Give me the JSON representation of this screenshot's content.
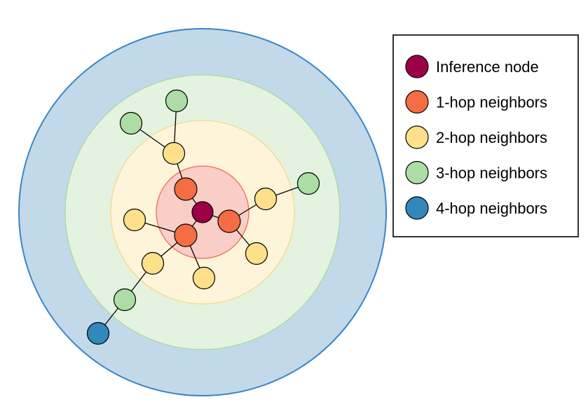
{
  "rings": [
    {
      "hop": 4,
      "fill": "#c2d9ea",
      "stroke": "#3a86c4"
    },
    {
      "hop": 3,
      "fill": "#e4f3df",
      "stroke": "#a9d9a0"
    },
    {
      "hop": 2,
      "fill": "#fdf4d9",
      "stroke": "#f3d88b"
    },
    {
      "hop": 1,
      "fill": "#f9cec6",
      "stroke": "#ee6d55"
    }
  ],
  "legend": {
    "items": [
      {
        "label": "Inference node",
        "color": "#9c0047"
      },
      {
        "label": "1-hop neighbors",
        "color": "#f46d43"
      },
      {
        "label": "2-hop neighbors",
        "color": "#fee08b"
      },
      {
        "label": "3-hop neighbors",
        "color": "#abdda4"
      },
      {
        "label": "4-hop neighbors",
        "color": "#3288bd"
      }
    ]
  },
  "nodes": [
    {
      "id": "center",
      "hop": 0
    },
    {
      "id": "h1a",
      "hop": 1
    },
    {
      "id": "h1b",
      "hop": 1
    },
    {
      "id": "h1c",
      "hop": 1
    },
    {
      "id": "h2a",
      "hop": 2
    },
    {
      "id": "h2b",
      "hop": 2
    },
    {
      "id": "h2c",
      "hop": 2
    },
    {
      "id": "h2d",
      "hop": 2
    },
    {
      "id": "h2e",
      "hop": 2
    },
    {
      "id": "h2f",
      "hop": 2
    },
    {
      "id": "h3a",
      "hop": 3
    },
    {
      "id": "h3b",
      "hop": 3
    },
    {
      "id": "h3c",
      "hop": 3
    },
    {
      "id": "h3d",
      "hop": 3
    },
    {
      "id": "h4a",
      "hop": 4
    }
  ],
  "edges": [
    [
      "center",
      "h1a"
    ],
    [
      "center",
      "h1b"
    ],
    [
      "center",
      "h1c"
    ],
    [
      "h1a",
      "h2a"
    ],
    [
      "h1b",
      "h2b"
    ],
    [
      "h1b",
      "h2c"
    ],
    [
      "h1c",
      "h2d"
    ],
    [
      "h1c",
      "h2e"
    ],
    [
      "h1c",
      "h2f"
    ],
    [
      "h2a",
      "h3a"
    ],
    [
      "h2a",
      "h3b"
    ],
    [
      "h2b",
      "h3c"
    ],
    [
      "h2e",
      "h3d"
    ],
    [
      "h3d",
      "h4a"
    ]
  ]
}
